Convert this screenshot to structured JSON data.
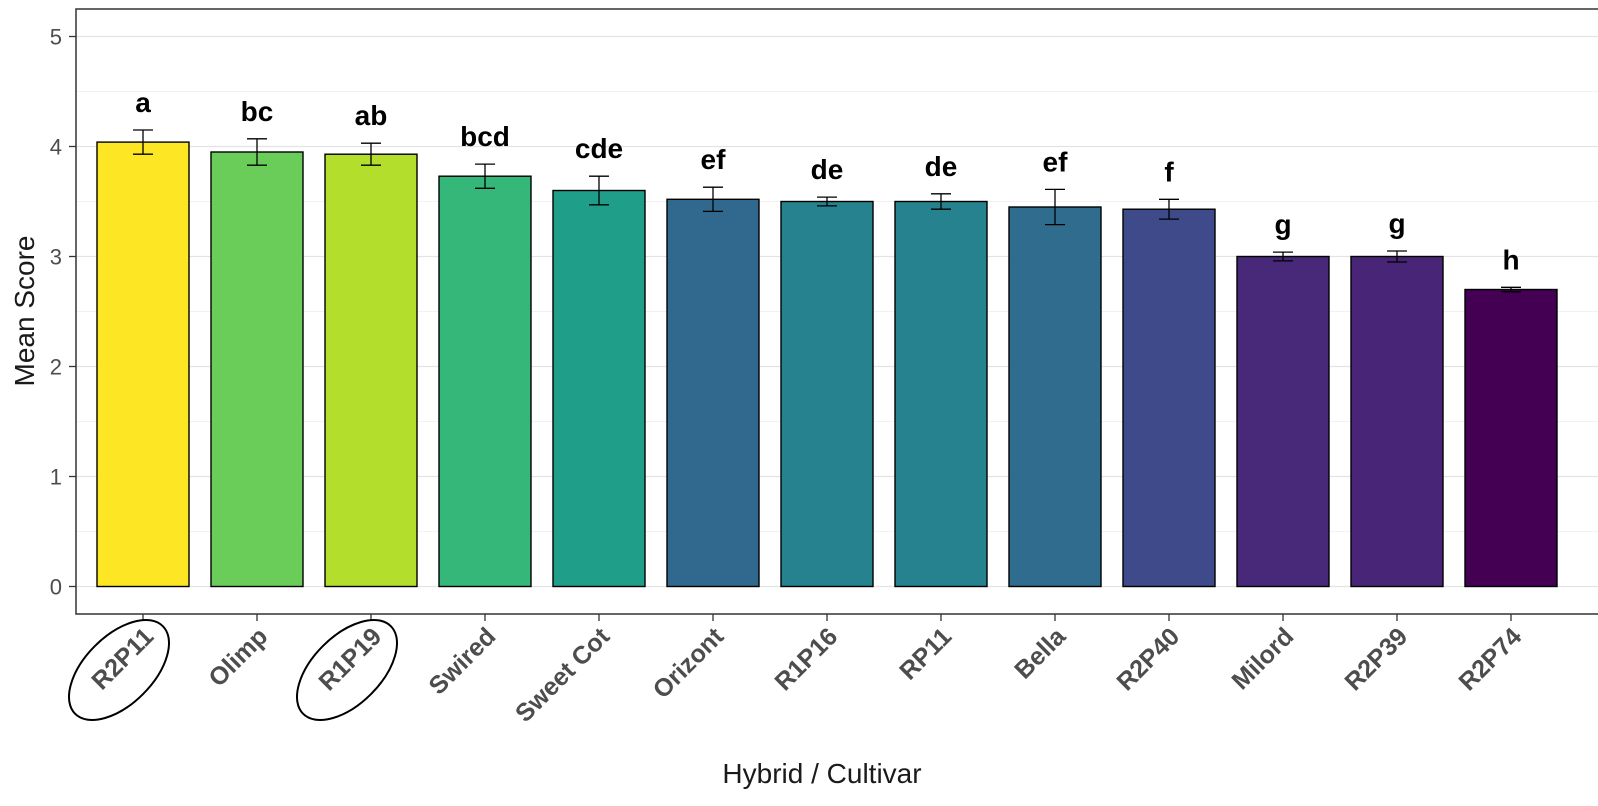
{
  "chart_data": {
    "type": "bar",
    "xlabel": "Hybrid / Cultivar",
    "ylabel": "Mean Score",
    "ylim": [
      0,
      5.25
    ],
    "yticks": [
      0,
      1,
      2,
      3,
      4,
      5
    ],
    "grid": true,
    "legend": "none",
    "categories": [
      "R2P11",
      "Olimp",
      "R1P19",
      "Swired",
      "Sweet Cot",
      "Orizont",
      "R1P16",
      "RP11",
      "Bella",
      "R2P40",
      "Milord",
      "R2P39",
      "R2P74"
    ],
    "values": [
      4.04,
      3.95,
      3.93,
      3.73,
      3.6,
      3.52,
      3.5,
      3.5,
      3.45,
      3.43,
      3.0,
      3.0,
      2.7
    ],
    "errors": [
      0.11,
      0.12,
      0.1,
      0.11,
      0.13,
      0.11,
      0.04,
      0.07,
      0.16,
      0.09,
      0.04,
      0.05,
      0.02
    ],
    "significance_letters": [
      "a",
      "bc",
      "ab",
      "bcd",
      "cde",
      "ef",
      "de",
      "de",
      "ef",
      "f",
      "g",
      "g",
      "h"
    ],
    "bar_colors": [
      "#FDE725",
      "#6BCD59",
      "#B4DE2C",
      "#35B779",
      "#1F9E89",
      "#31688E",
      "#26828E",
      "#26828E",
      "#2F6C8E",
      "#3E4A89",
      "#482878",
      "#482576",
      "#440154"
    ],
    "highlighted_categories": [
      "R2P11",
      "R1P19"
    ]
  }
}
